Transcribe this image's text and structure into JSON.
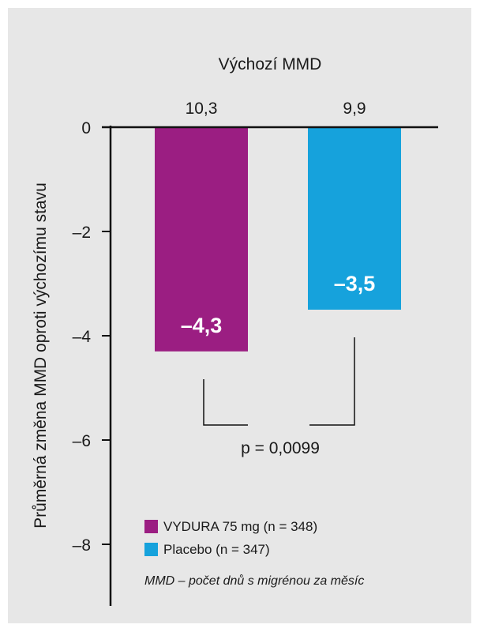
{
  "chart_data": {
    "type": "bar",
    "categories": [
      "VYDURA 75 mg (n = 348)",
      "Placebo (n = 347)"
    ],
    "values": [
      -4.3,
      -3.5
    ],
    "value_labels": [
      "–4,3",
      "–3,5"
    ],
    "colors": [
      "#9b1e82",
      "#16a2dc"
    ],
    "baseline_title": "Výchozí MMD",
    "baseline_values": [
      "10,3",
      "9,9"
    ],
    "ylabel": "Průměrná změna MMD oproti výchozímu stavu",
    "ylim": [
      -9.2,
      0
    ],
    "yticks": [
      0,
      -2,
      -4,
      -6,
      -8
    ],
    "ytick_labels": [
      "0",
      "–2",
      "–4",
      "–6",
      "–8"
    ],
    "significance": "p = 0,0099",
    "legend": [
      {
        "label": "VYDURA 75 mg (n = 348)",
        "color": "#9b1e82"
      },
      {
        "label": "Placebo (n = 347)",
        "color": "#16a2dc"
      }
    ],
    "legend_position": "bottom-right",
    "footnote": "MMD – počet dnů s migrénou za měsíc",
    "grid": false
  }
}
